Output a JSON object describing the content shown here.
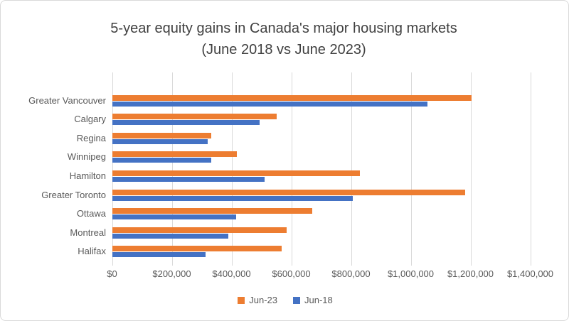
{
  "chart_data": {
    "type": "bar",
    "orientation": "horizontal",
    "title": "5-year equity gains in Canada's major housing markets (June 2018 vs June 2023)",
    "title_line1": "5-year equity gains in Canada's major housing markets",
    "title_line2": "(June 2018 vs June 2023)",
    "categories": [
      "Greater Vancouver",
      "Calgary",
      "Regina",
      "Winnipeg",
      "Hamilton",
      "Greater Toronto",
      "Ottawa",
      "Montreal",
      "Halifax"
    ],
    "series": [
      {
        "name": "Jun-23",
        "color": "#ED7D31",
        "values": [
          1203000,
          550000,
          330000,
          417000,
          828000,
          1182000,
          669000,
          583000,
          566000
        ]
      },
      {
        "name": "Jun-18",
        "color": "#4472C4",
        "values": [
          1055000,
          493000,
          320000,
          330000,
          510000,
          805000,
          415000,
          387000,
          313000
        ]
      }
    ],
    "x_axis": {
      "min": 0,
      "max": 1400000,
      "tick_step": 200000,
      "tick_labels": [
        "$0",
        "$200,000",
        "$400,000",
        "$600,000",
        "$800,000",
        "$1,000,000",
        "$1,200,000",
        "$1,400,000"
      ]
    },
    "y_axis_label": "",
    "x_axis_label": "",
    "legend_position": "bottom",
    "grid": "vertical",
    "colors": {
      "jun23": "#ED7D31",
      "jun18": "#4472C4",
      "gridline": "#D9D9D9",
      "axis_text": "#595959",
      "title_text": "#404040",
      "background": "#FFFFFF",
      "border": "#D9D9D9"
    }
  }
}
